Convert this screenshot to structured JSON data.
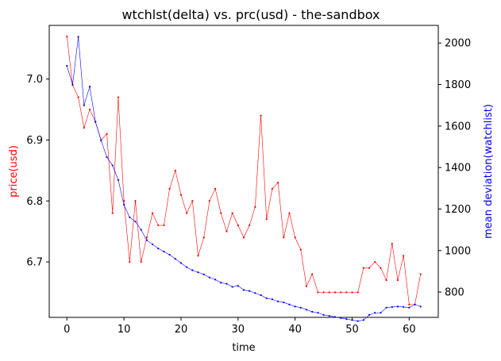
{
  "chart_data": {
    "type": "line",
    "title": "wtchlst(delta) vs. prc(usd) - the-sandbox",
    "xlabel": "time",
    "ylabel_left": "price(usd)",
    "ylabel_right": "mean deviation(watchlist)",
    "xlim": [
      -3.1,
      65.1
    ],
    "ylim_left": [
      6.609,
      7.088
    ],
    "ylim_right": [
      678,
      2085
    ],
    "x_ticks": [
      0,
      10,
      20,
      30,
      40,
      50,
      60
    ],
    "y_ticks_left": [
      6.7,
      6.8,
      6.9,
      7.0
    ],
    "y_ticks_right": [
      800,
      1000,
      1200,
      1400,
      1600,
      1800,
      2000
    ],
    "grid": false,
    "x": [
      0,
      1,
      2,
      3,
      4,
      5,
      6,
      7,
      8,
      9,
      10,
      11,
      12,
      13,
      14,
      15,
      16,
      17,
      18,
      19,
      20,
      21,
      22,
      23,
      24,
      25,
      26,
      27,
      28,
      29,
      30,
      31,
      32,
      33,
      34,
      35,
      36,
      37,
      38,
      39,
      40,
      41,
      42,
      43,
      44,
      45,
      46,
      47,
      48,
      49,
      50,
      51,
      52,
      53,
      54,
      55,
      56,
      57,
      58,
      59,
      60,
      61,
      62
    ],
    "series": [
      {
        "name": "price(usd)",
        "axis": "left",
        "color": "#ff0000",
        "values": [
          7.07,
          6.99,
          6.97,
          6.92,
          6.95,
          6.93,
          6.9,
          6.91,
          6.78,
          6.97,
          6.8,
          6.7,
          6.8,
          6.7,
          6.74,
          6.78,
          6.76,
          6.76,
          6.82,
          6.85,
          6.81,
          6.78,
          6.8,
          6.71,
          6.74,
          6.8,
          6.82,
          6.78,
          6.75,
          6.78,
          6.76,
          6.74,
          6.76,
          6.79,
          6.94,
          6.77,
          6.82,
          6.83,
          6.74,
          6.78,
          6.74,
          6.72,
          6.66,
          6.68,
          6.65,
          6.65,
          6.65,
          6.65,
          6.65,
          6.65,
          6.65,
          6.65,
          6.69,
          6.69,
          6.7,
          6.69,
          6.67,
          6.73,
          6.67,
          6.71,
          6.63,
          6.63,
          6.68
        ]
      },
      {
        "name": "mean deviation(watchlist)",
        "axis": "right",
        "color": "#0000ff",
        "values": [
          1890,
          1800,
          2030,
          1700,
          1790,
          1620,
          1530,
          1450,
          1410,
          1340,
          1220,
          1160,
          1140,
          1100,
          1050,
          1030,
          1010,
          995,
          980,
          960,
          940,
          920,
          905,
          895,
          885,
          870,
          860,
          845,
          840,
          825,
          830,
          810,
          805,
          795,
          785,
          770,
          765,
          755,
          750,
          740,
          730,
          725,
          715,
          705,
          700,
          690,
          685,
          680,
          675,
          670,
          665,
          660,
          665,
          690,
          700,
          700,
          725,
          728,
          730,
          728,
          725,
          740,
          730
        ]
      }
    ]
  }
}
